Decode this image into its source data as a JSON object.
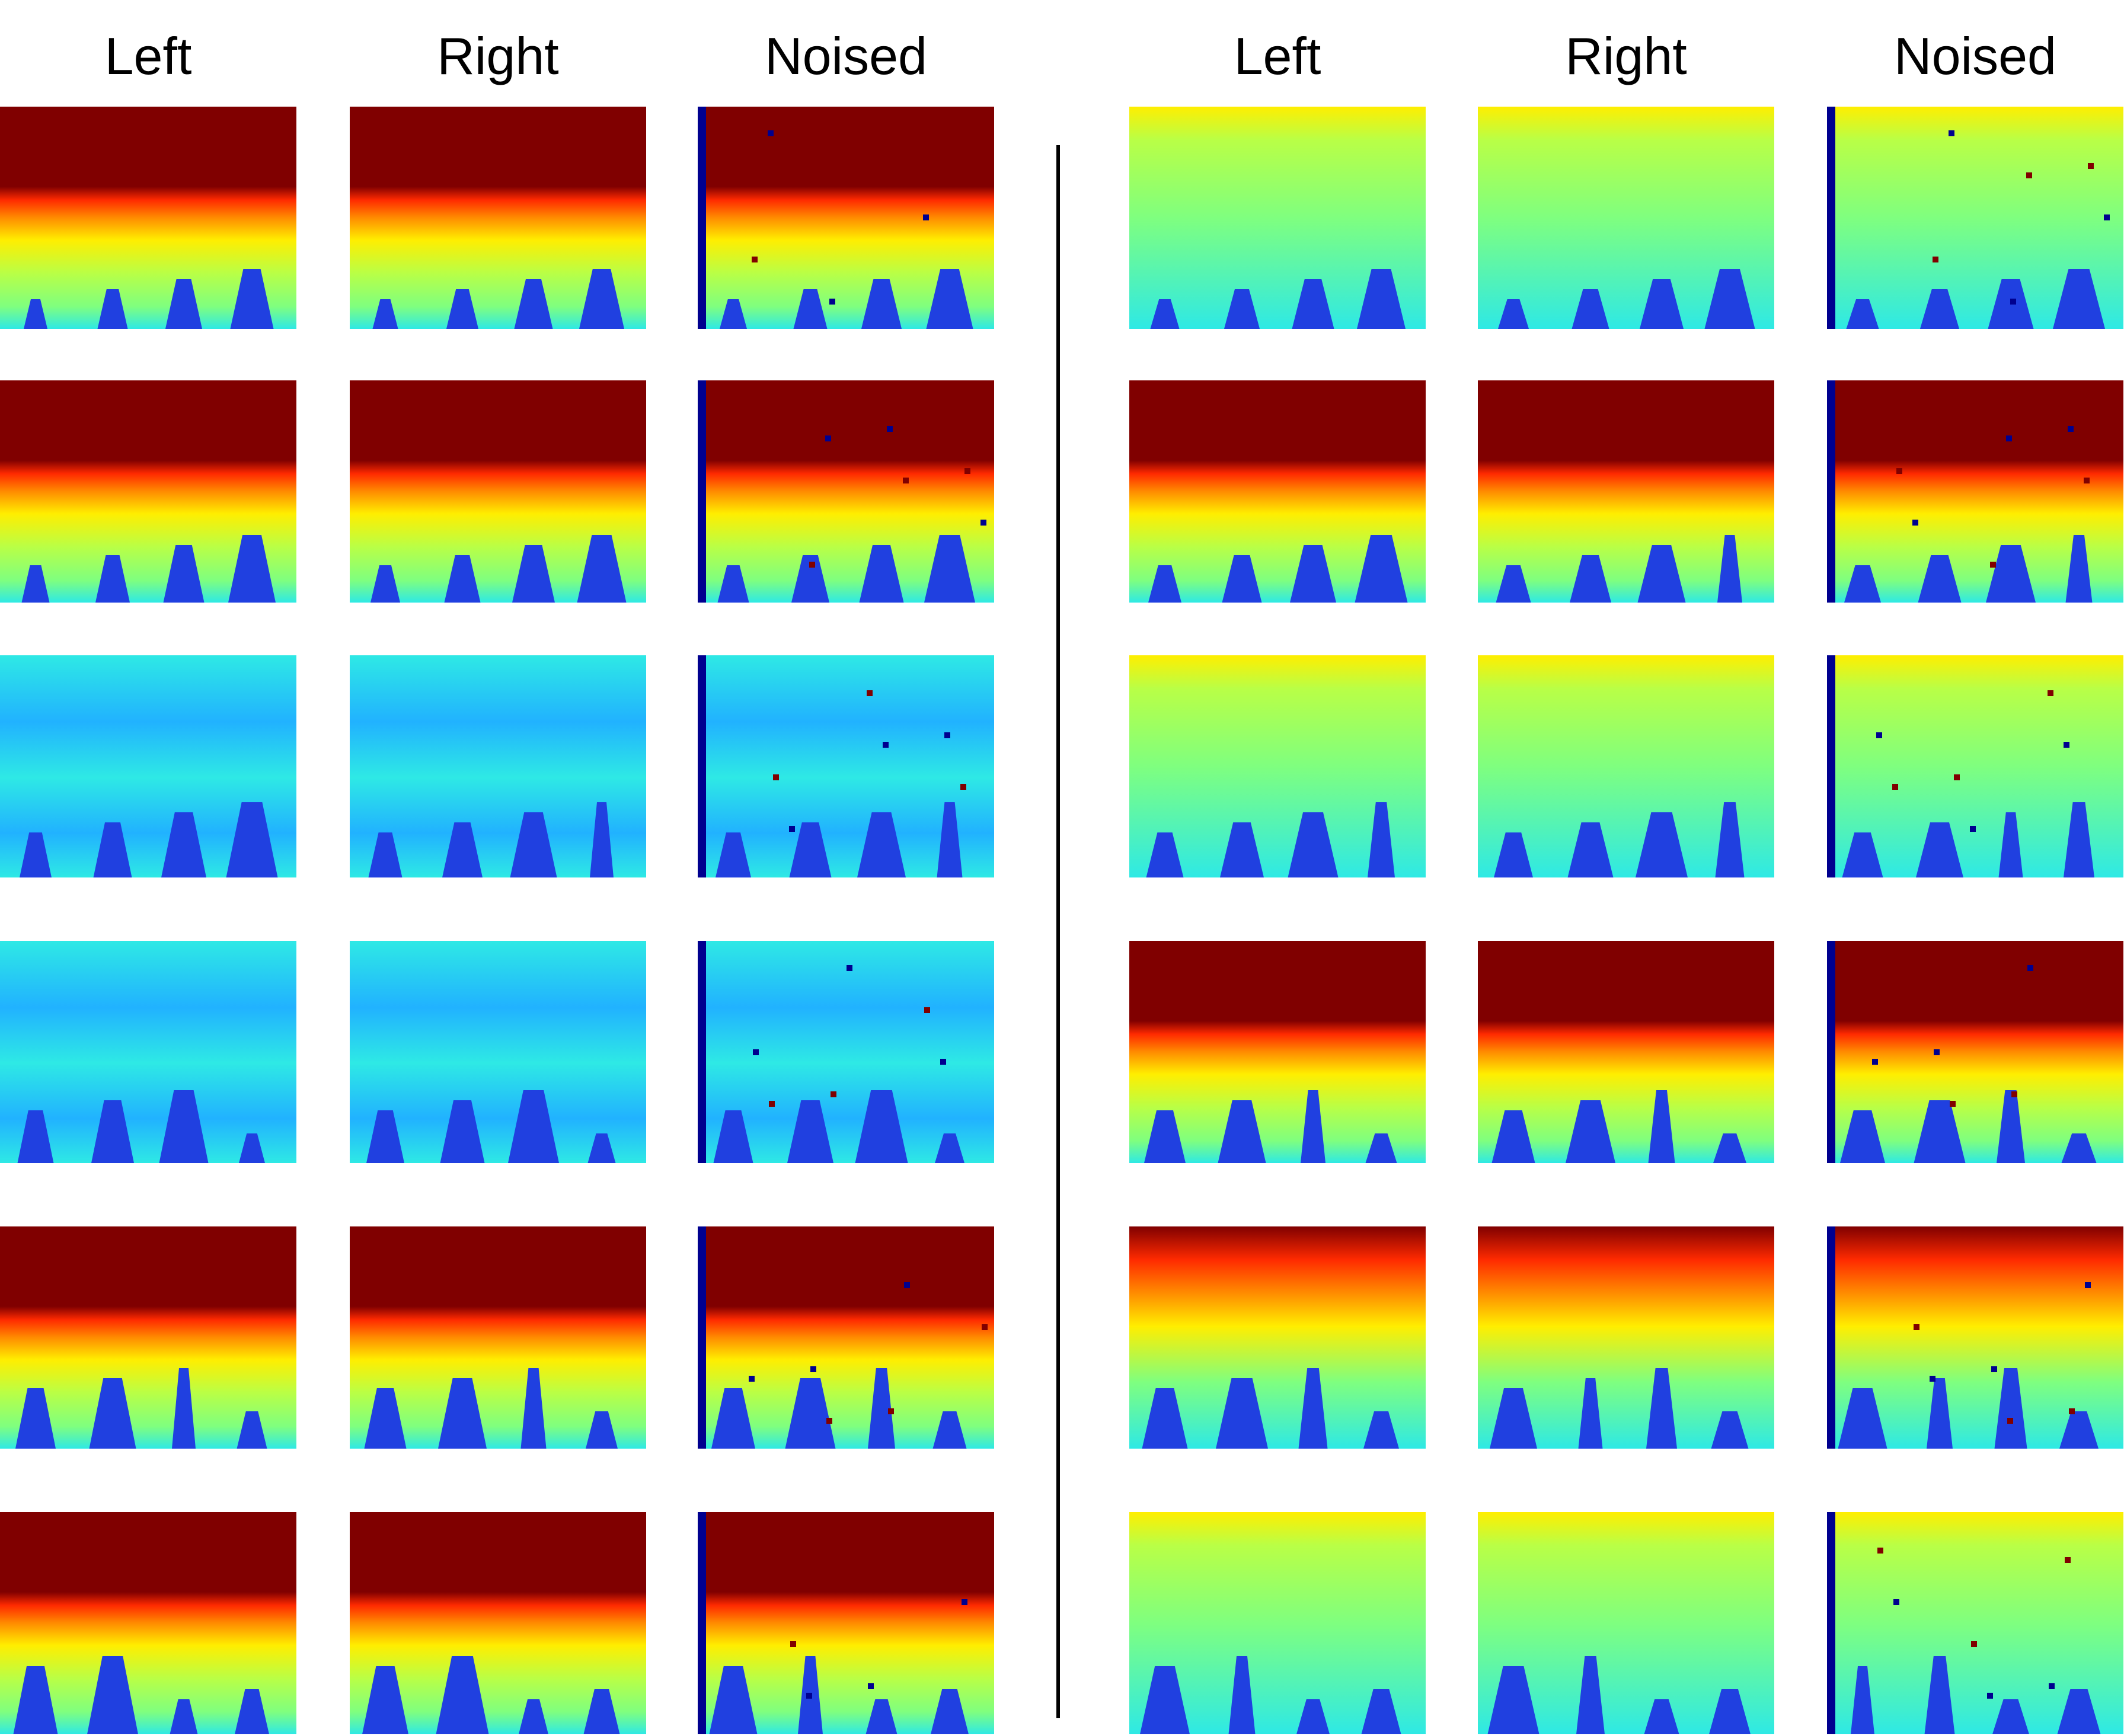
{
  "column_headers": [
    "Left",
    "Right",
    "Noised",
    "Left",
    "Right",
    "Noised"
  ],
  "colors": {
    "dark_red": "#800000",
    "red": "#ff2a00",
    "orange": "#ff8c00",
    "yellow": "#ffee00",
    "yellow_green": "#b9ff46",
    "green": "#7fff7f",
    "cyan": "#2ee9e5",
    "light_blue": "#21b2ff",
    "blue": "#2040e0",
    "dark_blue": "#00008f"
  },
  "grid": {
    "columns": 6,
    "rows": 6,
    "description_left": "left group",
    "description_right": "right group"
  }
}
